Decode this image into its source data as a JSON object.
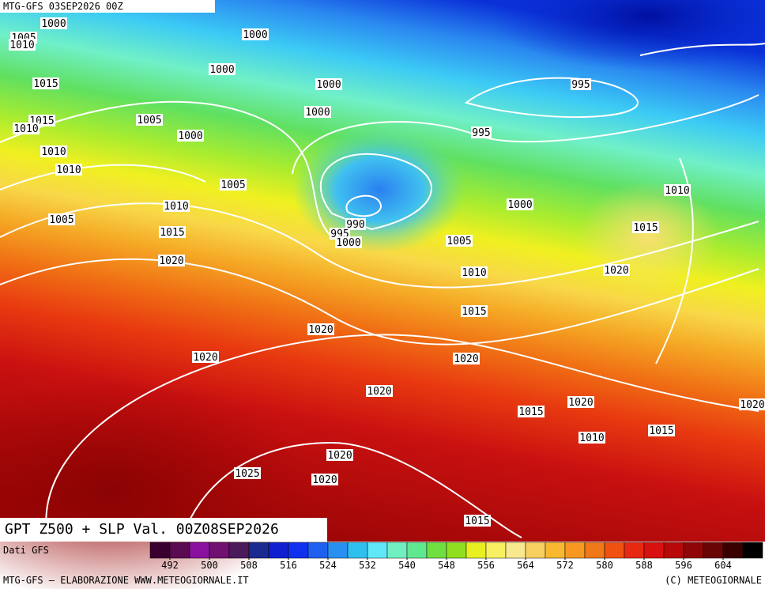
{
  "header": {
    "run": "MTG-GFS 03SEP2026 00Z",
    "title": "GPT Z500 + SLP Val. 00Z08SEP2026"
  },
  "footer": {
    "source": "Dati GFS",
    "credit": "MTG-GFS — ELABORAZIONE WWW.METEOGIORNALE.IT",
    "copyright": "(C) METEOGIORNALE"
  },
  "colorbar": {
    "start": 488,
    "step": 4,
    "colors": [
      "#3a0030",
      "#5a0a50",
      "#8a10a0",
      "#701070",
      "#4a1a5a",
      "#1a2a90",
      "#1020d0",
      "#1030f0",
      "#2060f0",
      "#2890f0",
      "#30c0f0",
      "#60e8f8",
      "#70f0c0",
      "#60e890",
      "#70e040",
      "#90e020",
      "#e8f020",
      "#f8f060",
      "#f8e890",
      "#f8d060",
      "#f8b830",
      "#f89820",
      "#f07818",
      "#f05010",
      "#e82810",
      "#d81010",
      "#b80808",
      "#900505",
      "#6a0505",
      "#3a0000",
      "#000000"
    ],
    "ticks": [
      492,
      500,
      508,
      516,
      524,
      532,
      540,
      548,
      556,
      564,
      572,
      580,
      588,
      596,
      604
    ]
  },
  "isobar_labels": [
    "1000",
    "1005",
    "1010",
    "1000",
    "1000",
    "1015",
    "1000",
    "995",
    "1015",
    "1010",
    "1005",
    "1000",
    "1000",
    "995",
    "1010",
    "1010",
    "1005",
    "1010",
    "1010",
    "1000",
    "990",
    "1005",
    "1015",
    "995",
    "1000",
    "1015",
    "1005",
    "1020",
    "1010",
    "1020",
    "1015",
    "1020",
    "1020",
    "1020",
    "1020",
    "1020",
    "1020",
    "1015",
    "1010",
    "1015",
    "1020",
    "1025",
    "1020",
    "1015"
  ]
}
